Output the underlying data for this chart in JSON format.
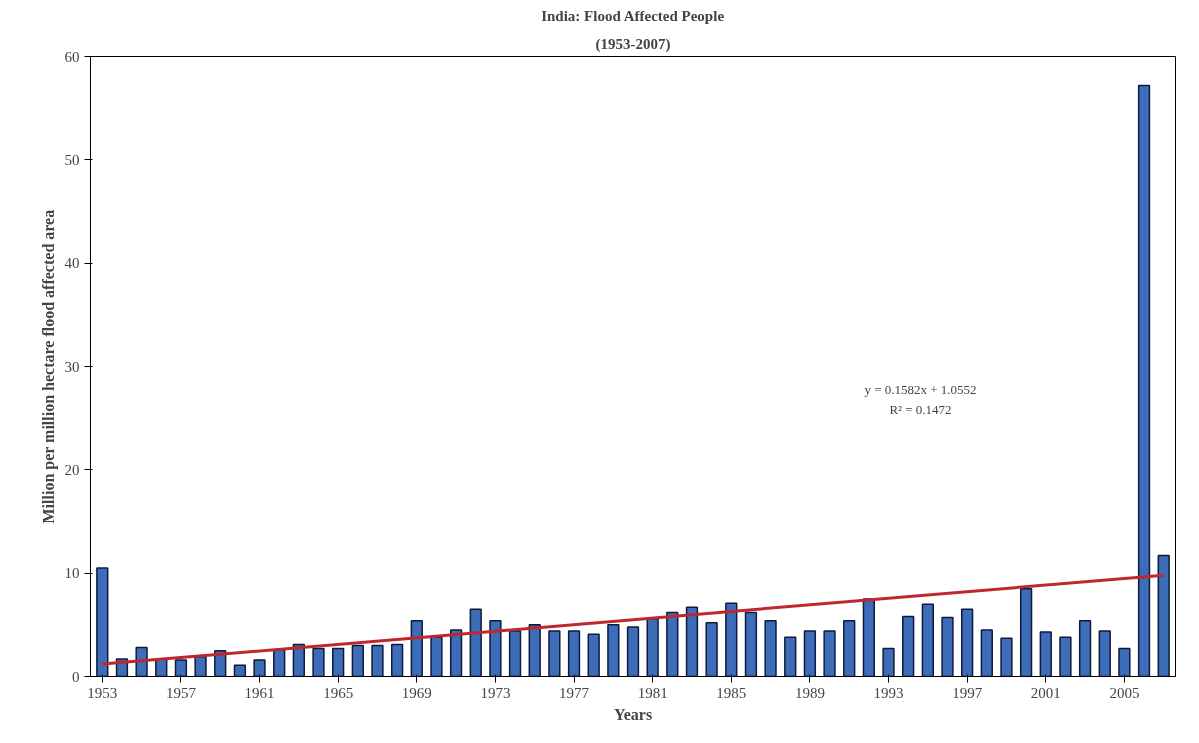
{
  "chart_data": {
    "type": "bar",
    "title": "India: Flood Affected People",
    "subtitle": "(1953-2007)",
    "xlabel": "Years",
    "ylabel": "Million per million hectare flood affected area",
    "x": [
      1953,
      1954,
      1955,
      1956,
      1957,
      1958,
      1959,
      1960,
      1961,
      1962,
      1963,
      1964,
      1965,
      1966,
      1967,
      1968,
      1969,
      1970,
      1971,
      1972,
      1973,
      1974,
      1975,
      1976,
      1977,
      1978,
      1979,
      1980,
      1981,
      1982,
      1983,
      1984,
      1985,
      1986,
      1987,
      1988,
      1989,
      1990,
      1991,
      1992,
      1993,
      1994,
      1995,
      1996,
      1997,
      1998,
      1999,
      2000,
      2001,
      2002,
      2003,
      2004,
      2005,
      2006,
      2007
    ],
    "series": [
      {
        "color": "#3d6cb9",
        "values": [
          10.5,
          1.7,
          2.8,
          1.7,
          1.6,
          1.9,
          2.5,
          1.1,
          1.6,
          2.6,
          3.1,
          2.7,
          2.7,
          3.0,
          3.0,
          3.1,
          5.4,
          3.8,
          4.5,
          6.5,
          5.4,
          4.4,
          5.0,
          4.4,
          4.4,
          4.1,
          5.0,
          4.8,
          5.6,
          6.2,
          6.7,
          5.2,
          7.1,
          6.2,
          5.4,
          3.8,
          4.4,
          4.4,
          5.4,
          7.5,
          2.7,
          5.8,
          7.0,
          5.7,
          6.5,
          4.5,
          3.7,
          8.5,
          4.3,
          3.8,
          5.4,
          4.4,
          2.7,
          57.2,
          11.7
        ]
      },
      {
        "type": "line",
        "color": "#c0272d",
        "x": [
          1953,
          2007
        ],
        "values": [
          1.2,
          9.8
        ]
      }
    ],
    "annotations": [
      "y = 0.1582x + 1.0552",
      "R² = 0.1472"
    ],
    "xlim": [
      1952.4,
      2007.6
    ],
    "xticks": [
      1953,
      1957,
      1961,
      1965,
      1969,
      1973,
      1977,
      1981,
      1985,
      1989,
      1993,
      1997,
      2001,
      2005
    ],
    "ylim": [
      0,
      60
    ],
    "yticks": [
      0,
      10,
      20,
      30,
      40,
      50,
      60
    ],
    "grid": false
  }
}
